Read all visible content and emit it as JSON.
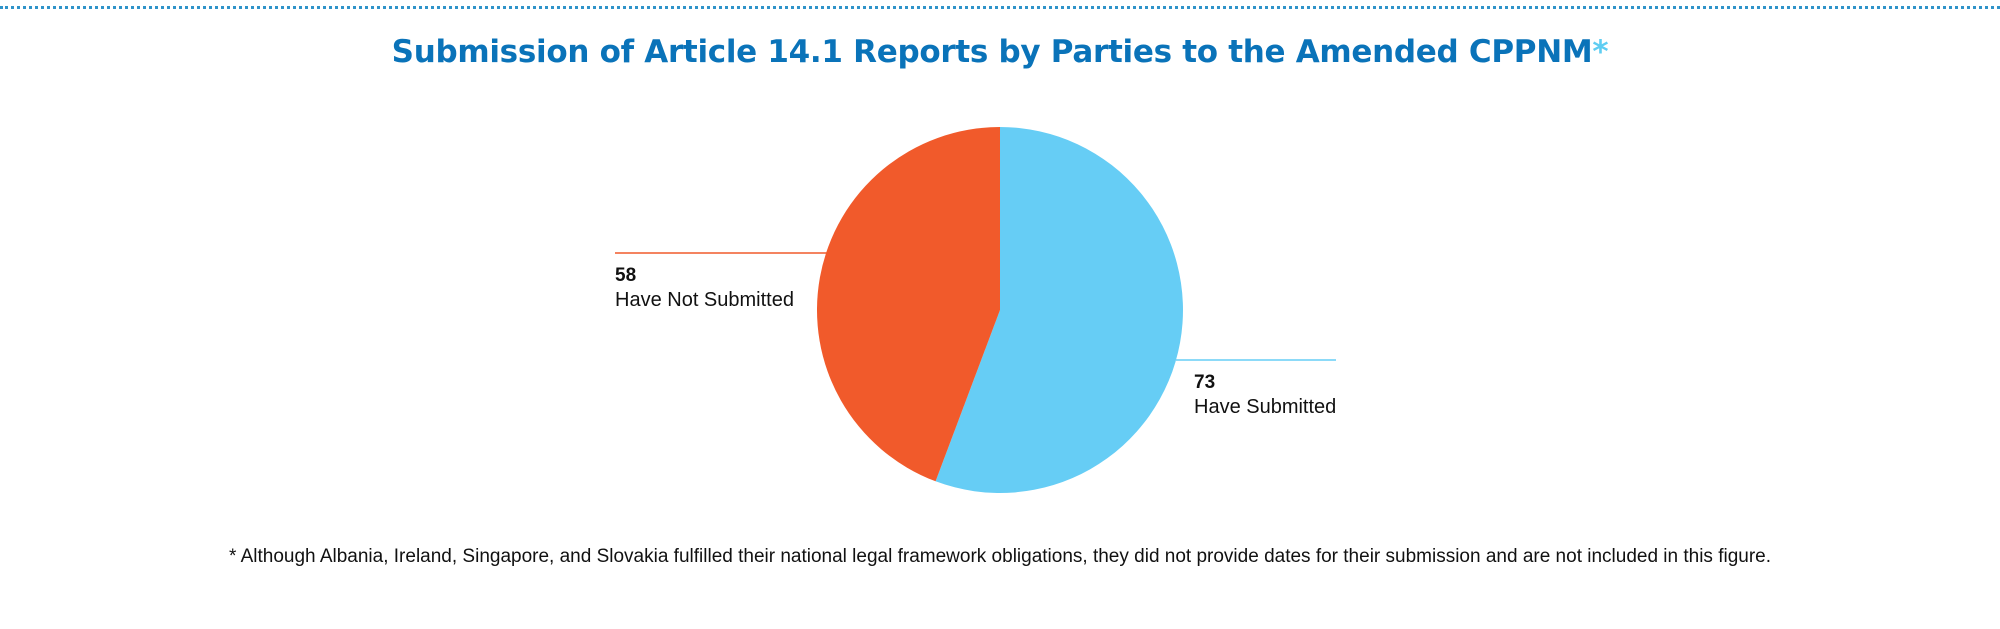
{
  "chart_data": {
    "type": "pie",
    "title": "Submission of Article 14.1 Reports by Parties to the Amended CPPNM",
    "title_mark": "*",
    "slices": [
      {
        "label": "Have Submitted",
        "value": 73,
        "color": "#66cdf5"
      },
      {
        "label": "Have Not Submitted",
        "value": 58,
        "color": "#f15a2b"
      }
    ],
    "start_angle": "12 o'clock",
    "direction": "clockwise",
    "footnote": "* Although Albania, Ireland, Singapore, and Slovakia fulfilled their national legal framework obligations, they did not provide dates for their submission and are not included in this figure."
  },
  "colors": {
    "title": "#0a73b9",
    "title_mark": "#5fcdf2",
    "rule": "#2f93c9"
  }
}
